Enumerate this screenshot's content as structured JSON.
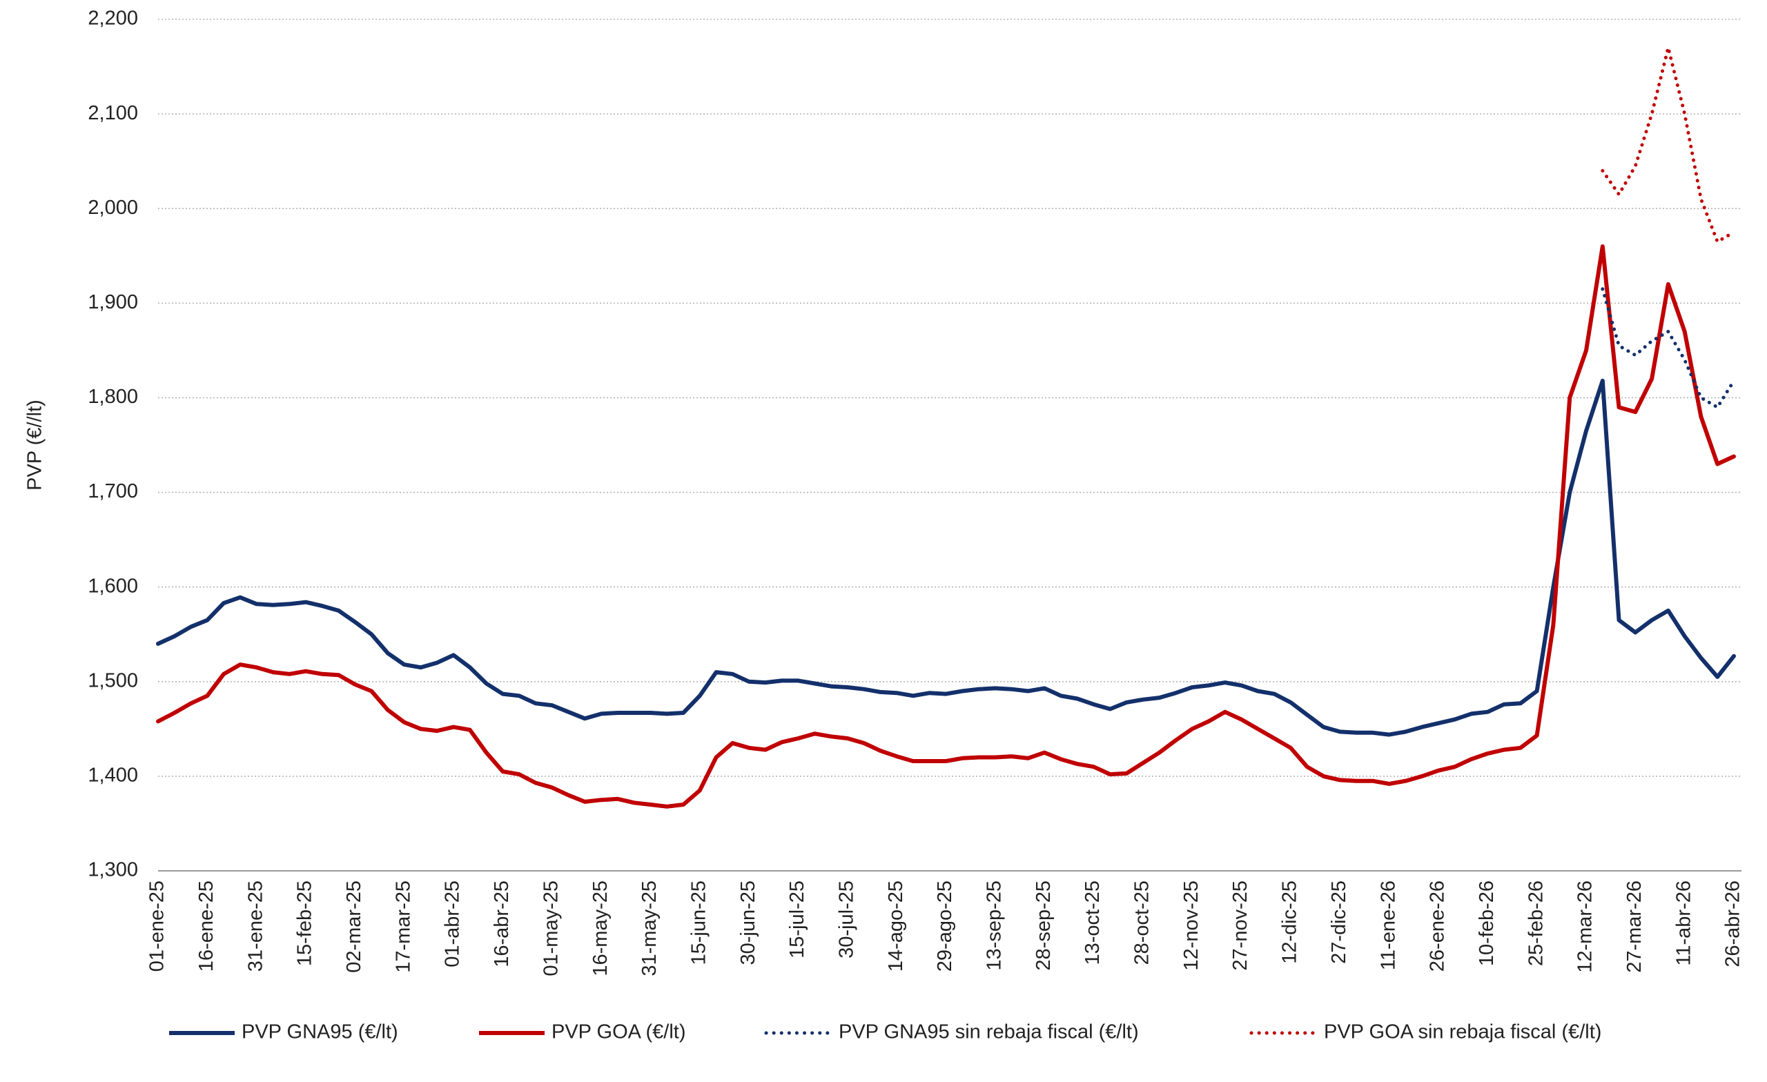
{
  "chart_data": {
    "type": "line",
    "y_label": "PVP (€//lt)",
    "x": [
      "01-ene-25",
      null,
      null,
      "16-ene-25",
      null,
      null,
      "31-ene-25",
      null,
      null,
      "15-feb-25",
      null,
      null,
      "02-mar-25",
      null,
      null,
      "17-mar-25",
      null,
      null,
      "01-abr-25",
      null,
      null,
      "16-abr-25",
      null,
      null,
      "01-may-25",
      null,
      null,
      "16-may-25",
      null,
      null,
      "31-may-25",
      null,
      null,
      "15-jun-25",
      null,
      null,
      "30-jun-25",
      null,
      null,
      "15-jul-25",
      null,
      null,
      "30-jul-25",
      null,
      null,
      "14-ago-25",
      null,
      null,
      "29-ago-25",
      null,
      null,
      "13-sep-25",
      null,
      null,
      "28-sep-25",
      null,
      null,
      "13-oct-25",
      null,
      null,
      "28-oct-25",
      null,
      null,
      "12-nov-25",
      null,
      null,
      "27-nov-25",
      null,
      null,
      "12-dic-25",
      null,
      null,
      "27-dic-25",
      null,
      null,
      "11-ene-26",
      null,
      null,
      "26-ene-26",
      null,
      null,
      "10-feb-26",
      null,
      null,
      "25-feb-26",
      null,
      null,
      "12-mar-26",
      null,
      null,
      "27-mar-26",
      null,
      null,
      "11-abr-26",
      null,
      null,
      "26-abr-26"
    ],
    "series": [
      {
        "name": "PVP GNA95 (€/lt)",
        "color": "#13306b",
        "style": "solid",
        "values": [
          1.54,
          1.548,
          1.558,
          1.565,
          1.583,
          1.589,
          1.582,
          1.581,
          1.582,
          1.584,
          1.58,
          1.575,
          1.563,
          1.55,
          1.53,
          1.518,
          1.515,
          1.52,
          1.528,
          1.515,
          1.498,
          1.487,
          1.485,
          1.477,
          1.475,
          1.468,
          1.461,
          1.466,
          1.467,
          1.467,
          1.467,
          1.466,
          1.467,
          1.485,
          1.51,
          1.508,
          1.5,
          1.499,
          1.501,
          1.501,
          1.498,
          1.495,
          1.494,
          1.492,
          1.489,
          1.488,
          1.485,
          1.488,
          1.487,
          1.49,
          1.492,
          1.493,
          1.492,
          1.49,
          1.493,
          1.485,
          1.482,
          1.476,
          1.471,
          1.478,
          1.481,
          1.483,
          1.488,
          1.494,
          1.496,
          1.499,
          1.496,
          1.49,
          1.487,
          1.478,
          1.465,
          1.452,
          1.447,
          1.446,
          1.446,
          1.444,
          1.447,
          1.452,
          1.456,
          1.46,
          1.466,
          1.468,
          1.476,
          1.477,
          1.49,
          1.6,
          1.7,
          1.765,
          1.818,
          1.565,
          1.552,
          1.565,
          1.575,
          1.548,
          1.525,
          1.505,
          1.527
        ]
      },
      {
        "name": "PVP GOA (€/lt)",
        "color": "#c00000",
        "style": "solid",
        "values": [
          1.458,
          1.467,
          1.477,
          1.485,
          1.508,
          1.518,
          1.515,
          1.51,
          1.508,
          1.511,
          1.508,
          1.507,
          1.497,
          1.49,
          1.47,
          1.457,
          1.45,
          1.448,
          1.452,
          1.449,
          1.425,
          1.405,
          1.402,
          1.393,
          1.388,
          1.38,
          1.373,
          1.375,
          1.376,
          1.372,
          1.37,
          1.368,
          1.37,
          1.385,
          1.42,
          1.435,
          1.43,
          1.428,
          1.436,
          1.44,
          1.445,
          1.442,
          1.44,
          1.435,
          1.427,
          1.421,
          1.416,
          1.416,
          1.416,
          1.419,
          1.42,
          1.42,
          1.421,
          1.419,
          1.425,
          1.418,
          1.413,
          1.41,
          1.402,
          1.403,
          1.414,
          1.425,
          1.438,
          1.45,
          1.458,
          1.468,
          1.46,
          1.45,
          1.44,
          1.43,
          1.41,
          1.4,
          1.396,
          1.395,
          1.395,
          1.392,
          1.395,
          1.4,
          1.406,
          1.41,
          1.418,
          1.424,
          1.428,
          1.43,
          1.443,
          1.56,
          1.8,
          1.85,
          1.96,
          1.79,
          1.785,
          1.82,
          1.92,
          1.87,
          1.78,
          1.73,
          1.738
        ]
      },
      {
        "name": "PVP GNA95 sin rebaja fiscal (€/lt)",
        "color": "#13306b",
        "style": "dotted",
        "values": [
          null,
          null,
          null,
          null,
          null,
          null,
          null,
          null,
          null,
          null,
          null,
          null,
          null,
          null,
          null,
          null,
          null,
          null,
          null,
          null,
          null,
          null,
          null,
          null,
          null,
          null,
          null,
          null,
          null,
          null,
          null,
          null,
          null,
          null,
          null,
          null,
          null,
          null,
          null,
          null,
          null,
          null,
          null,
          null,
          null,
          null,
          null,
          null,
          null,
          null,
          null,
          null,
          null,
          null,
          null,
          null,
          null,
          null,
          null,
          null,
          null,
          null,
          null,
          null,
          null,
          null,
          null,
          null,
          null,
          null,
          null,
          null,
          null,
          null,
          null,
          null,
          null,
          null,
          null,
          null,
          null,
          null,
          null,
          null,
          null,
          null,
          null,
          null,
          1.915,
          1.855,
          1.845,
          1.86,
          1.87,
          1.84,
          1.8,
          1.79,
          1.818
        ]
      },
      {
        "name": "PVP GOA sin rebaja fiscal (€/lt)",
        "color": "#c00000",
        "style": "dotted",
        "values": [
          null,
          null,
          null,
          null,
          null,
          null,
          null,
          null,
          null,
          null,
          null,
          null,
          null,
          null,
          null,
          null,
          null,
          null,
          null,
          null,
          null,
          null,
          null,
          null,
          null,
          null,
          null,
          null,
          null,
          null,
          null,
          null,
          null,
          null,
          null,
          null,
          null,
          null,
          null,
          null,
          null,
          null,
          null,
          null,
          null,
          null,
          null,
          null,
          null,
          null,
          null,
          null,
          null,
          null,
          null,
          null,
          null,
          null,
          null,
          null,
          null,
          null,
          null,
          null,
          null,
          null,
          null,
          null,
          null,
          null,
          null,
          null,
          null,
          null,
          null,
          null,
          null,
          null,
          null,
          null,
          null,
          null,
          null,
          null,
          null,
          null,
          null,
          null,
          2.04,
          2.015,
          2.045,
          2.1,
          2.17,
          2.1,
          2.01,
          1.965,
          1.975
        ]
      }
    ],
    "ylim": [
      1.3,
      2.2
    ],
    "yticks": [
      {
        "value": 1.3,
        "label": "1,300"
      },
      {
        "value": 1.4,
        "label": "1,400"
      },
      {
        "value": 1.5,
        "label": "1,500"
      },
      {
        "value": 1.6,
        "label": "1,600"
      },
      {
        "value": 1.7,
        "label": "1,700"
      },
      {
        "value": 1.8,
        "label": "1,800"
      },
      {
        "value": 1.9,
        "label": "1,900"
      },
      {
        "value": 2.0,
        "label": "2,000"
      },
      {
        "value": 2.1,
        "label": "2,100"
      },
      {
        "value": 2.2,
        "label": "2,200"
      }
    ],
    "grid": true,
    "legend": "bottom"
  }
}
